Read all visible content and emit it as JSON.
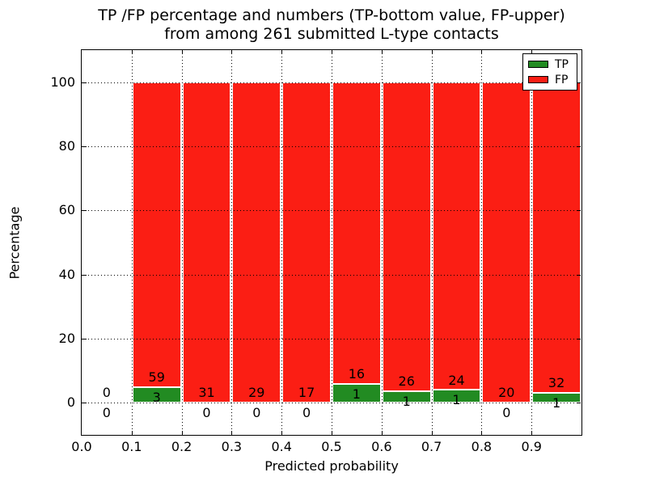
{
  "title": {
    "line1": "TP /FP percentage and numbers (TP-bottom value, FP-upper)",
    "line2": "from among 261 submitted L-type contacts"
  },
  "axes": {
    "xlabel": "Predicted probability",
    "ylabel": "Percentage"
  },
  "legend": {
    "items": [
      {
        "label": "TP",
        "color": "#228b22"
      },
      {
        "label": "FP",
        "color": "#fb1e14"
      }
    ]
  },
  "chart_data": {
    "type": "bar",
    "stacked": true,
    "normalized_to_percent": true,
    "title": "TP /FP percentage and numbers (TP-bottom value, FP-upper) from among 261 submitted L-type contacts",
    "xlabel": "Predicted probability",
    "ylabel": "Percentage",
    "xlim": [
      0.0,
      1.0
    ],
    "ylim": [
      -10,
      110
    ],
    "xticks": [
      "0.0",
      "0.1",
      "0.2",
      "0.3",
      "0.4",
      "0.5",
      "0.6",
      "0.7",
      "0.8",
      "0.9"
    ],
    "xtick_values": [
      0.0,
      0.1,
      0.2,
      0.3,
      0.4,
      0.5,
      0.6,
      0.7,
      0.8,
      0.9
    ],
    "yticks": [
      "0",
      "20",
      "40",
      "60",
      "80",
      "100"
    ],
    "ytick_values": [
      0,
      20,
      40,
      60,
      80,
      100
    ],
    "grid": "dotted",
    "legend_position": "upper right",
    "bin_edges": [
      0.0,
      0.1,
      0.2,
      0.3,
      0.4,
      0.5,
      0.6,
      0.7,
      0.8,
      0.9,
      1.0
    ],
    "categories": [
      "0.0-0.1",
      "0.1-0.2",
      "0.2-0.3",
      "0.3-0.4",
      "0.4-0.5",
      "0.5-0.6",
      "0.6-0.7",
      "0.7-0.8",
      "0.8-0.9",
      "0.9-1.0"
    ],
    "series": [
      {
        "name": "TP",
        "color": "#228b22",
        "counts": [
          0,
          3,
          0,
          0,
          0,
          1,
          1,
          1,
          0,
          1
        ]
      },
      {
        "name": "FP",
        "color": "#fb1e14",
        "counts": [
          0,
          59,
          31,
          29,
          17,
          16,
          26,
          24,
          20,
          32
        ]
      }
    ],
    "bar_annotations": {
      "fp_labels": [
        "0",
        "59",
        "31",
        "29",
        "17",
        "16",
        "26",
        "24",
        "20",
        "32"
      ],
      "tp_labels": [
        "0",
        "3",
        "0",
        "0",
        "0",
        "1",
        "1",
        "1",
        "0",
        "1"
      ]
    },
    "total_contacts": 261
  }
}
